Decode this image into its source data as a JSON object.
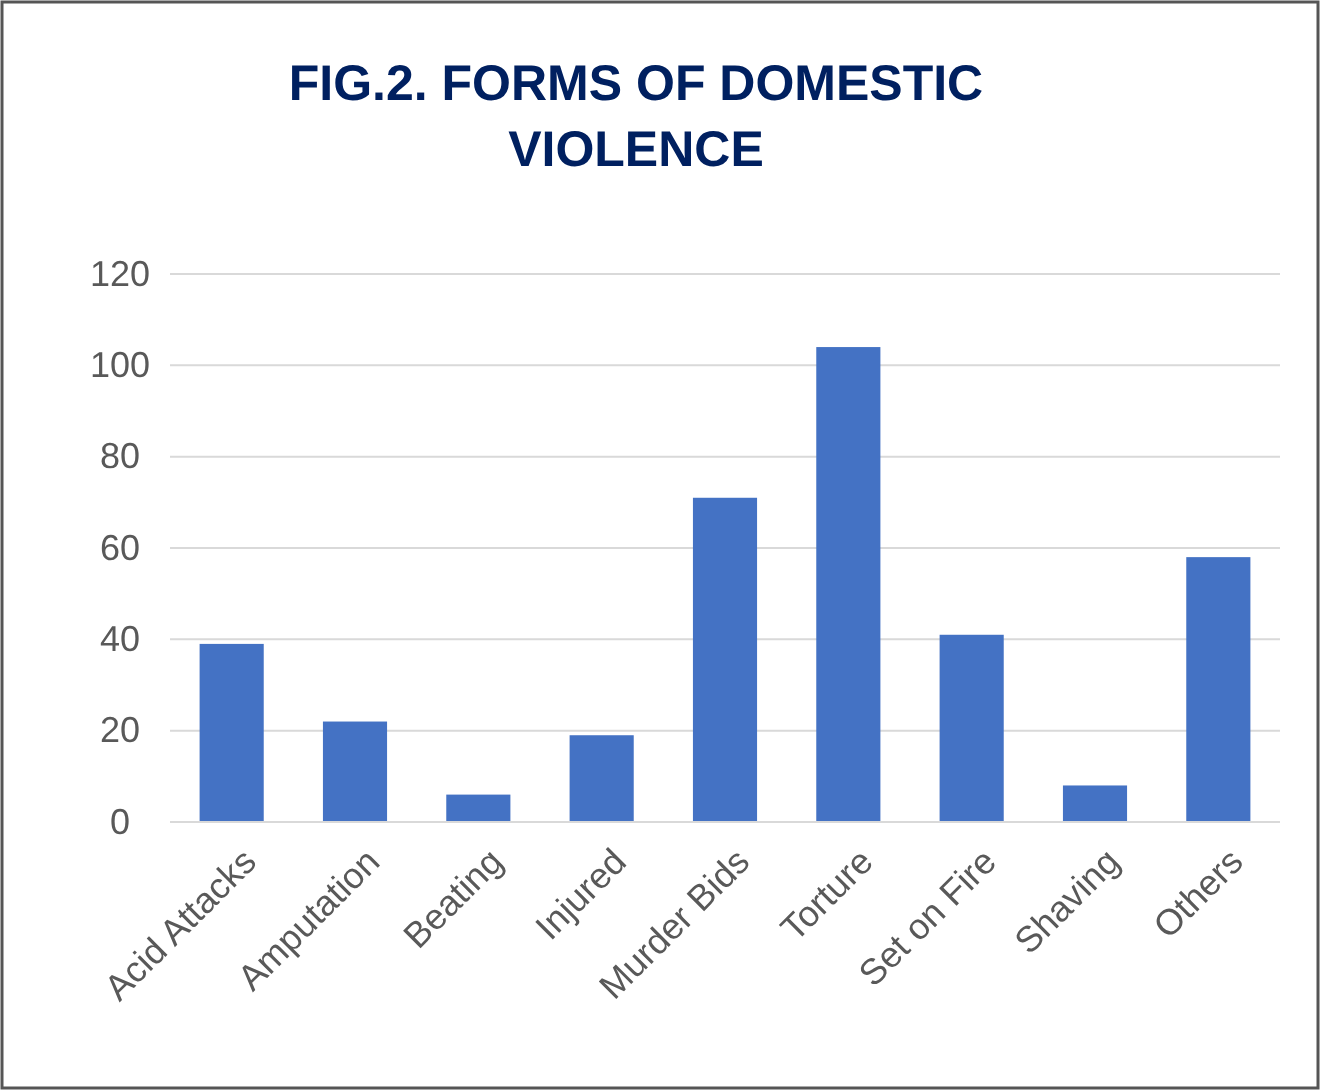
{
  "chart_data": {
    "type": "bar",
    "title": "FIG.2.  FORMS OF DOMESTIC VIOLENCE",
    "categories": [
      "Acid Attacks",
      "Amputation",
      "Beating",
      "Injured",
      "Murder Bids",
      "Torture",
      "Set on Fire",
      "Shaving",
      "Others"
    ],
    "values": [
      39,
      22,
      6,
      19,
      71,
      104,
      41,
      8,
      58
    ],
    "color": "#4472c4",
    "ylim": [
      0,
      120
    ],
    "yticks": [
      0,
      20,
      40,
      60,
      80,
      100,
      120
    ],
    "grid": "y"
  }
}
